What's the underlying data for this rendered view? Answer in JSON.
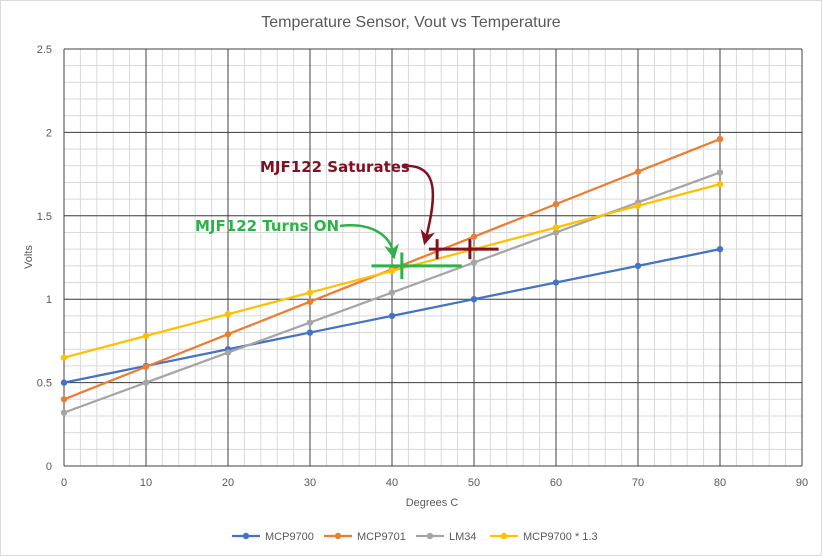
{
  "chart_data": {
    "type": "line",
    "title": "Temperature Sensor, Vout vs Temperature",
    "xlabel": "Degrees C",
    "ylabel": "Volts",
    "xlim": [
      0,
      90
    ],
    "ylim": [
      0,
      2.5
    ],
    "x_ticks": [
      0,
      10,
      20,
      30,
      40,
      50,
      60,
      70,
      80,
      90
    ],
    "y_ticks": [
      0,
      0.5,
      1,
      1.5,
      2,
      2.5
    ],
    "y_tick_labels": [
      "0",
      "0.5",
      "1",
      "1.5",
      "2",
      "2.5"
    ],
    "grid": true,
    "minor_grid": true,
    "legend_position": "bottom",
    "x": [
      0,
      10,
      20,
      30,
      40,
      50,
      60,
      70,
      80
    ],
    "series": [
      {
        "name": "MCP9700",
        "color": "#4472C4",
        "values": [
          0.5,
          0.6,
          0.7,
          0.8,
          0.9,
          1.0,
          1.1,
          1.2,
          1.3
        ]
      },
      {
        "name": "MCP9701",
        "color": "#ED7D31",
        "values": [
          0.4,
          0.595,
          0.79,
          0.985,
          1.18,
          1.375,
          1.57,
          1.765,
          1.96
        ]
      },
      {
        "name": "LM34",
        "color": "#A5A5A5",
        "values": [
          0.32,
          0.5,
          0.68,
          0.86,
          1.04,
          1.22,
          1.4,
          1.58,
          1.76
        ]
      },
      {
        "name": "MCP9700 * 1.3",
        "color": "#FFC000",
        "values": [
          0.65,
          0.78,
          0.91,
          1.04,
          1.17,
          1.3,
          1.43,
          1.56,
          1.69
        ]
      }
    ],
    "annotations": [
      {
        "text": "MJF122 Saturates",
        "color": "#7F1120",
        "marker_x": [
          44.5,
          53
        ],
        "marker_y": 1.3,
        "cross_x": [
          45.5,
          49.5
        ],
        "cross_h": 0.06
      },
      {
        "text": "MJF122 Turns ON",
        "color": "#2DB24A",
        "marker_x": [
          37.5,
          48.5
        ],
        "marker_y": 1.2,
        "cross_x": [
          41.2
        ],
        "cross_h": 0.08
      }
    ]
  }
}
